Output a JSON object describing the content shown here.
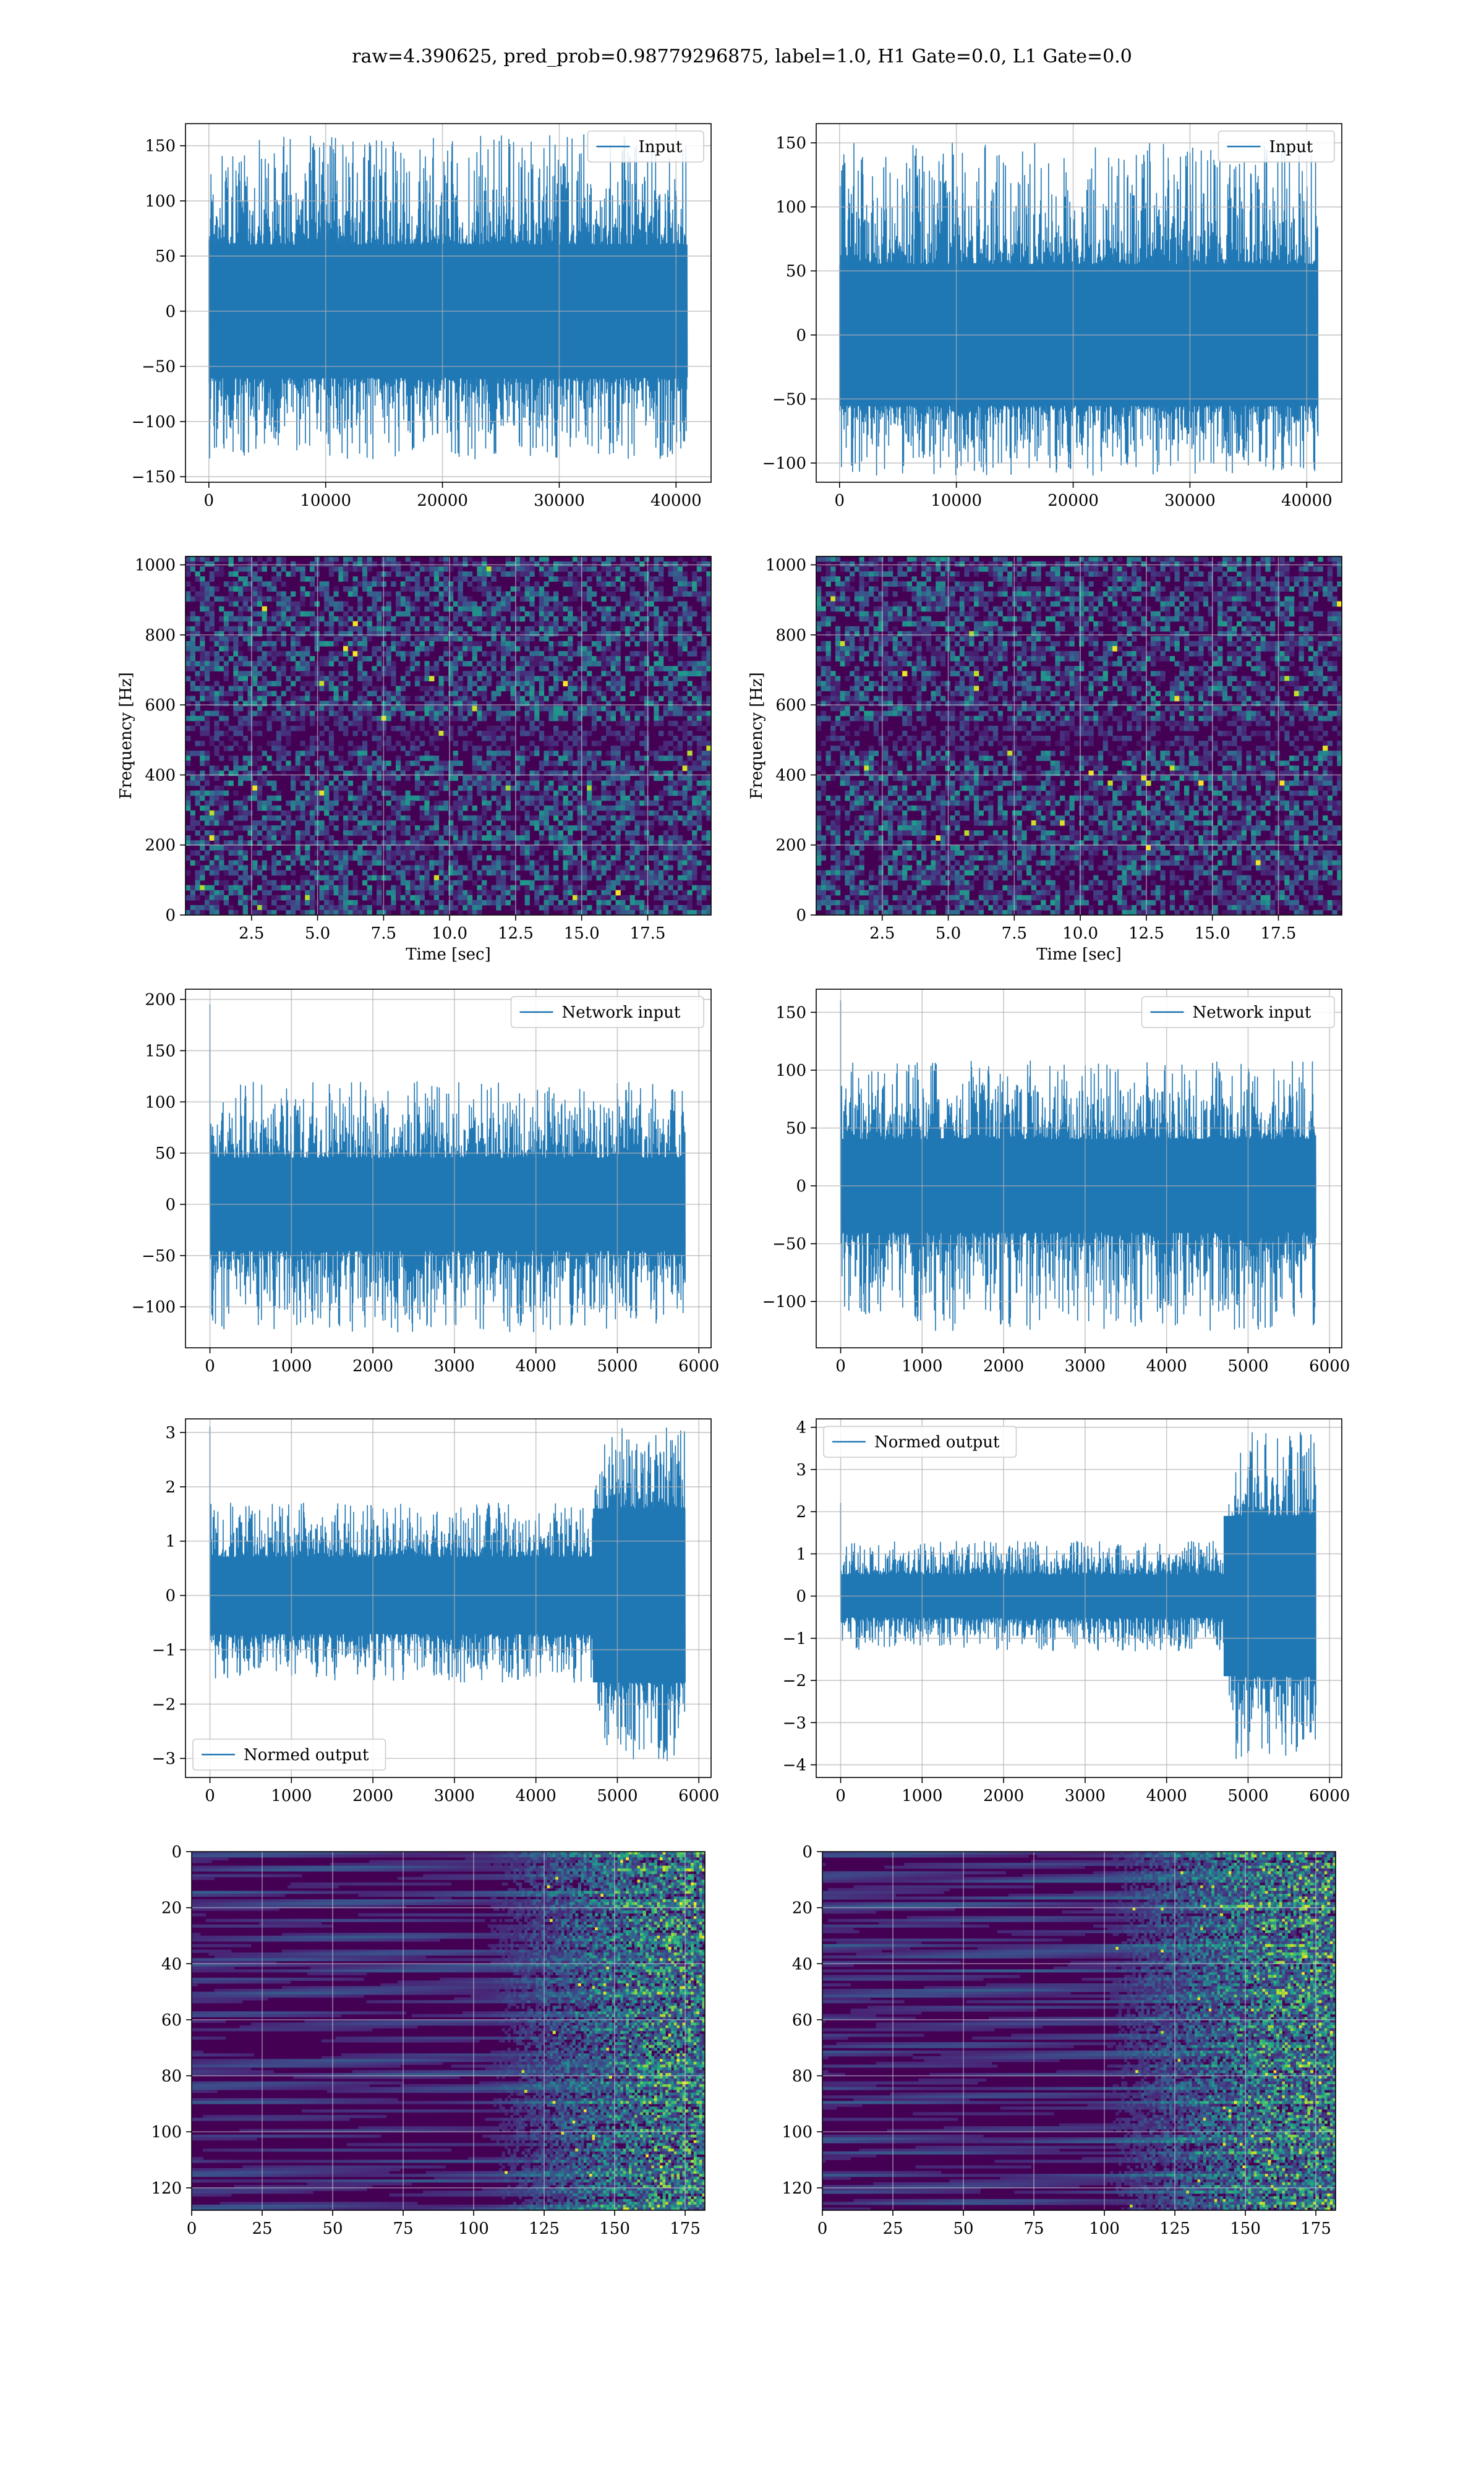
{
  "figure": {
    "suptitle": "raw=4.390625, pred_prob=0.98779296875, label=1.0, H1 Gate=0.0, L1 Gate=0.0"
  },
  "colors": {
    "series": "#1f77b4",
    "grid": "#b0b0b0",
    "viridis_dark": "#440154",
    "viridis_mid": "#3b528b",
    "viridis_teal": "#21918c",
    "viridis_green": "#5ec962",
    "viridis_yellow": "#fde725"
  },
  "chart_data": [
    {
      "id": "r0c0",
      "type": "line",
      "legend": "Input",
      "legend_loc": "upper right",
      "xlim": [
        -2000,
        43000
      ],
      "ylim": [
        -155,
        170
      ],
      "xticks": [
        0,
        10000,
        20000,
        30000,
        40000
      ],
      "xticklabels": [
        "0",
        "10000",
        "20000",
        "30000",
        "40000"
      ],
      "yticks": [
        -150,
        -100,
        -50,
        0,
        50,
        100,
        150
      ],
      "yticklabels": [
        "−150",
        "−100",
        "−50",
        "0",
        "50",
        "100",
        "150"
      ],
      "signal": {
        "x_start": 0,
        "x_end": 40960,
        "core": [
          -60,
          60
        ],
        "spike_max": 160,
        "spike_min": -135,
        "envelope": "flat"
      }
    },
    {
      "id": "r0c1",
      "type": "line",
      "legend": "Input",
      "legend_loc": "upper right",
      "xlim": [
        -2000,
        43000
      ],
      "ylim": [
        -115,
        165
      ],
      "xticks": [
        0,
        10000,
        20000,
        30000,
        40000
      ],
      "xticklabels": [
        "0",
        "10000",
        "20000",
        "30000",
        "40000"
      ],
      "yticks": [
        -100,
        -50,
        0,
        50,
        100,
        150
      ],
      "yticklabels": [
        "−100",
        "−50",
        "0",
        "50",
        "100",
        "150"
      ],
      "signal": {
        "x_start": 0,
        "x_end": 40960,
        "core": [
          -55,
          55
        ],
        "spike_max": 150,
        "spike_min": -110,
        "envelope": "flat"
      }
    },
    {
      "id": "r1c0",
      "type": "heatmap",
      "xlabel": "Time [sec]",
      "ylabel": "Frequency [Hz]",
      "xlim": [
        0,
        19.9
      ],
      "ylim": [
        0,
        1024
      ],
      "xticks": [
        2.5,
        5.0,
        7.5,
        10.0,
        12.5,
        15.0,
        17.5
      ],
      "xticklabels": [
        "2.5",
        "5.0",
        "7.5",
        "10.0",
        "12.5",
        "15.0",
        "17.5"
      ],
      "yticks": [
        0,
        200,
        400,
        600,
        800,
        1000
      ],
      "yticklabels": [
        "0",
        "200",
        "400",
        "600",
        "800",
        "1000"
      ],
      "texture": "spectrogram"
    },
    {
      "id": "r1c1",
      "type": "heatmap",
      "xlabel": "Time [sec]",
      "ylabel": "Frequency [Hz]",
      "xlim": [
        0,
        19.9
      ],
      "ylim": [
        0,
        1024
      ],
      "xticks": [
        2.5,
        5.0,
        7.5,
        10.0,
        12.5,
        15.0,
        17.5
      ],
      "xticklabels": [
        "2.5",
        "5.0",
        "7.5",
        "10.0",
        "12.5",
        "15.0",
        "17.5"
      ],
      "yticks": [
        0,
        200,
        400,
        600,
        800,
        1000
      ],
      "yticklabels": [
        "0",
        "200",
        "400",
        "600",
        "800",
        "1000"
      ],
      "texture": "spectrogram"
    },
    {
      "id": "r2c0",
      "type": "line",
      "legend": "Network input",
      "legend_loc": "upper right",
      "xlim": [
        -300,
        6150
      ],
      "ylim": [
        -140,
        210
      ],
      "xticks": [
        0,
        1000,
        2000,
        3000,
        4000,
        5000,
        6000
      ],
      "xticklabels": [
        "0",
        "1000",
        "2000",
        "3000",
        "4000",
        "5000",
        "6000"
      ],
      "yticks": [
        -100,
        -50,
        0,
        50,
        100,
        150,
        200
      ],
      "yticklabels": [
        "−100",
        "−50",
        "0",
        "50",
        "100",
        "150",
        "200"
      ],
      "signal": {
        "x_start": 0,
        "x_end": 5832,
        "core": [
          -45,
          45
        ],
        "spike_max": 120,
        "spike_min": -125,
        "first_spike": 195,
        "envelope": "flat"
      }
    },
    {
      "id": "r2c1",
      "type": "line",
      "legend": "Network input",
      "legend_loc": "upper right",
      "xlim": [
        -300,
        6150
      ],
      "ylim": [
        -140,
        170
      ],
      "xticks": [
        0,
        1000,
        2000,
        3000,
        4000,
        5000,
        6000
      ],
      "xticklabels": [
        "0",
        "1000",
        "2000",
        "3000",
        "4000",
        "5000",
        "6000"
      ],
      "yticks": [
        -100,
        -50,
        0,
        50,
        100,
        150
      ],
      "yticklabels": [
        "−100",
        "−50",
        "0",
        "50",
        "100",
        "150"
      ],
      "signal": {
        "x_start": 0,
        "x_end": 5832,
        "core": [
          -40,
          40
        ],
        "spike_max": 108,
        "spike_min": -125,
        "first_spike": 160,
        "envelope": "flat"
      }
    },
    {
      "id": "r3c0",
      "type": "line",
      "legend": "Normed output",
      "legend_loc": "lower left",
      "xlim": [
        -300,
        6150
      ],
      "ylim": [
        -3.35,
        3.25
      ],
      "xticks": [
        0,
        1000,
        2000,
        3000,
        4000,
        5000,
        6000
      ],
      "xticklabels": [
        "0",
        "1000",
        "2000",
        "3000",
        "4000",
        "5000",
        "6000"
      ],
      "yticks": [
        -3,
        -2,
        -1,
        0,
        1,
        2,
        3
      ],
      "yticklabels": [
        "−3",
        "−2",
        "−1",
        "0",
        "1",
        "2",
        "3"
      ],
      "signal": {
        "x_start": 0,
        "x_end": 5832,
        "core": [
          -0.7,
          0.7
        ],
        "spike_max": 1.7,
        "spike_min": -1.6,
        "first_spike": 3.1,
        "envelope": "rise_after",
        "rise_from": 4700,
        "rise_core": 1.6,
        "rise_spike": 3.1
      }
    },
    {
      "id": "r3c1",
      "type": "line",
      "legend": "Normed output",
      "legend_loc": "upper left",
      "xlim": [
        -300,
        6150
      ],
      "ylim": [
        -4.3,
        4.2
      ],
      "xticks": [
        0,
        1000,
        2000,
        3000,
        4000,
        5000,
        6000
      ],
      "xticklabels": [
        "0",
        "1000",
        "2000",
        "3000",
        "4000",
        "5000",
        "6000"
      ],
      "yticks": [
        -4,
        -3,
        -2,
        -1,
        0,
        1,
        2,
        3,
        4
      ],
      "yticklabels": [
        "−4",
        "−3",
        "−2",
        "−1",
        "0",
        "1",
        "2",
        "3",
        "4"
      ],
      "signal": {
        "x_start": 0,
        "x_end": 5832,
        "core": [
          -0.5,
          0.5
        ],
        "spike_max": 1.3,
        "spike_min": -1.3,
        "first_spike": 2.2,
        "envelope": "rise_after",
        "rise_from": 4700,
        "rise_core": 1.9,
        "rise_spike": 3.9
      }
    },
    {
      "id": "r4c0",
      "type": "heatmap",
      "xlim": [
        0,
        182
      ],
      "ylim": [
        128,
        0
      ],
      "xticks": [
        0,
        25,
        50,
        75,
        100,
        125,
        150,
        175
      ],
      "xticklabels": [
        "0",
        "25",
        "50",
        "75",
        "100",
        "125",
        "150",
        "175"
      ],
      "yticks": [
        0,
        20,
        40,
        60,
        80,
        100,
        120
      ],
      "yticklabels": [
        "0",
        "20",
        "40",
        "60",
        "80",
        "100",
        "120"
      ],
      "texture": "features",
      "bright_from": 125
    },
    {
      "id": "r4c1",
      "type": "heatmap",
      "xlim": [
        0,
        182
      ],
      "ylim": [
        128,
        0
      ],
      "xticks": [
        0,
        25,
        50,
        75,
        100,
        125,
        150,
        175
      ],
      "xticklabels": [
        "0",
        "25",
        "50",
        "75",
        "100",
        "125",
        "150",
        "175"
      ],
      "yticks": [
        0,
        20,
        40,
        60,
        80,
        100,
        120
      ],
      "yticklabels": [
        "0",
        "20",
        "40",
        "60",
        "80",
        "100",
        "120"
      ],
      "texture": "features",
      "bright_from": 120
    }
  ]
}
